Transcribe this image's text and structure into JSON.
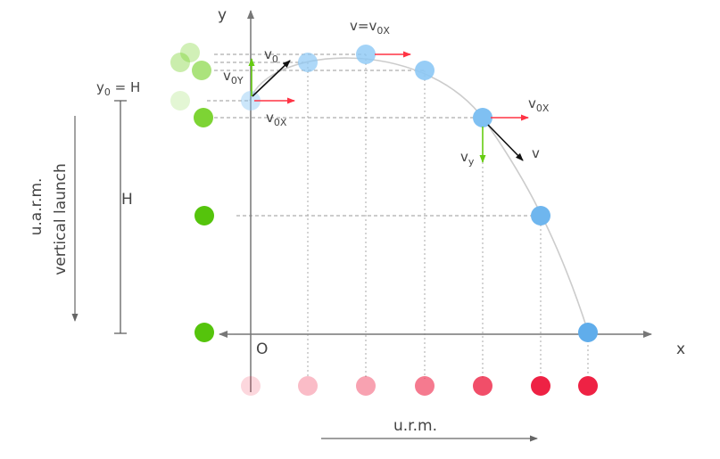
{
  "axes": {
    "x_label": "x",
    "y_label": "y",
    "origin_label": "O"
  },
  "labels": {
    "y0_main": "y",
    "y0_sub": "0",
    "y0_eq": " = H",
    "height": "H",
    "vertical_launch_line1": "u.a.r.m.",
    "vertical_launch_line2": "vertical launch",
    "horizontal_motion": "u.r.m."
  },
  "vectors": {
    "v0_main": "v",
    "v0_sub": "0",
    "v0y_main": "v",
    "v0y_sub": "0Y",
    "v0x_main": "v",
    "v0x_sub": "0X",
    "top_main": "v=v",
    "top_sub": "0X",
    "right_v0x_main": "v",
    "right_v0x_sub": "0X",
    "vy_main": "v",
    "vy_sub": "y",
    "v_label": "v"
  },
  "colors": {
    "axis": "#777777",
    "projectile": "#8cc8f5",
    "vertical_projection": "#66cc11",
    "horizontal_projection": "#ee2244",
    "vx_arrow": "#ff3344",
    "vy_arrow": "#66cc11",
    "velocity_arrow": "#111111",
    "trajectory": "#cccccc"
  }
}
